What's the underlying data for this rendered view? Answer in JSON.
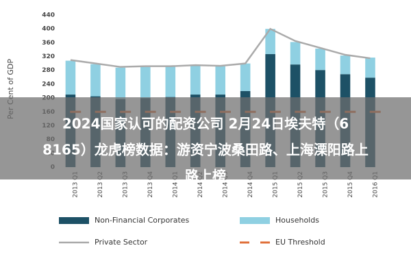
{
  "chart_data": {
    "type": "bar",
    "stacked": true,
    "y_label": "Per Cent of GDP",
    "categories": [
      "2013 Q1",
      "2013 Q2",
      "2013 Q3",
      "2013 Q4",
      "2014 Q1",
      "2014 Q2",
      "2014 Q3",
      "2014 Q4",
      "2015 Q1",
      "2015 Q2",
      "2015 Q3",
      "2015 Q4",
      "2016 Q1"
    ],
    "series": [
      {
        "name": "Non-Financial Corporates",
        "type": "bar",
        "color": "#1d5166",
        "values": [
          210,
          205,
          197,
          200,
          203,
          210,
          210,
          220,
          327,
          297,
          281,
          269,
          259
        ]
      },
      {
        "name": "Households",
        "type": "bar",
        "color": "#8fd0e2",
        "values": [
          98,
          93,
          91,
          90,
          89,
          85,
          82,
          80,
          73,
          65,
          62,
          54,
          58
        ]
      },
      {
        "name": "Private Sector",
        "type": "line",
        "color": "#aaaaaa",
        "values": [
          310,
          300,
          290,
          292,
          292,
          295,
          293,
          300,
          400,
          365,
          345,
          325,
          315
        ]
      },
      {
        "name": "EU Threshold",
        "type": "line",
        "dashed": true,
        "color": "#e0703a",
        "values": [
          160,
          160,
          160,
          160,
          160,
          160,
          160,
          160,
          160,
          160,
          160,
          160,
          160
        ]
      }
    ],
    "ylim": [
      0,
      440
    ],
    "yticks": [
      0,
      40,
      80,
      120,
      160,
      200,
      240,
      280,
      320,
      360,
      400,
      440
    ],
    "grid": false
  },
  "overlay": {
    "lines": [
      "2024国家认可的配资公司 2月24日埃夫特（6",
      "8165）龙虎榜数据：游资宁波桑田路、上海溧阳路上",
      "路上榜"
    ]
  }
}
